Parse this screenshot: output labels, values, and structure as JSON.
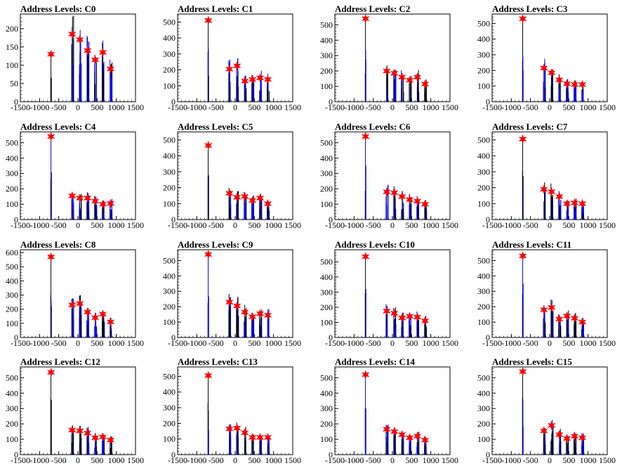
{
  "chart_data": [
    {
      "type": "bar",
      "title": "Address Levels: C0",
      "xlim": [
        -1500,
        1500
      ],
      "ylim": [
        0,
        240
      ],
      "yticks": [
        0,
        50,
        100,
        150,
        200
      ],
      "xticks": [
        -1500,
        -1000,
        -500,
        0,
        500,
        1000,
        1500
      ],
      "markers": {
        "x": [
          -700,
          -150,
          50,
          250,
          450,
          650,
          850
        ],
        "y": [
          130,
          185,
          170,
          140,
          115,
          135,
          90
        ]
      }
    },
    {
      "type": "bar",
      "title": "Address Levels: C1",
      "xlim": [
        -1500,
        1500
      ],
      "ylim": [
        0,
        550
      ],
      "yticks": [
        0,
        100,
        200,
        300,
        400,
        500
      ],
      "xticks": [
        -1500,
        -1000,
        -500,
        0,
        500,
        1000,
        1500
      ],
      "markers": {
        "x": [
          -700,
          -150,
          50,
          250,
          450,
          650,
          850
        ],
        "y": [
          510,
          205,
          225,
          130,
          140,
          150,
          140
        ]
      }
    },
    {
      "type": "bar",
      "title": "Address Levels: C2",
      "xlim": [
        -1500,
        1500
      ],
      "ylim": [
        0,
        570
      ],
      "yticks": [
        0,
        100,
        200,
        300,
        400,
        500
      ],
      "xticks": [
        -1500,
        -1000,
        -500,
        0,
        500,
        1000,
        1500
      ],
      "markers": {
        "x": [
          -700,
          -150,
          50,
          250,
          450,
          650,
          850
        ],
        "y": [
          540,
          200,
          185,
          160,
          140,
          160,
          115
        ]
      }
    },
    {
      "type": "bar",
      "title": "Address Levels: C3",
      "xlim": [
        -1500,
        1500
      ],
      "ylim": [
        0,
        560
      ],
      "yticks": [
        0,
        100,
        200,
        300,
        400,
        500
      ],
      "xticks": [
        -1500,
        -1000,
        -500,
        0,
        500,
        1000,
        1500
      ],
      "markers": {
        "x": [
          -700,
          -150,
          50,
          250,
          450,
          650,
          850
        ],
        "y": [
          530,
          215,
          185,
          140,
          115,
          110,
          110
        ]
      }
    },
    {
      "type": "bar",
      "title": "Address Levels: C4",
      "xlim": [
        -1500,
        1500
      ],
      "ylim": [
        0,
        570
      ],
      "yticks": [
        0,
        100,
        200,
        300,
        400,
        500
      ],
      "xticks": [
        -1500,
        -1000,
        -500,
        0,
        500,
        1000,
        1500
      ],
      "markers": {
        "x": [
          -700,
          -150,
          50,
          250,
          450,
          650,
          850
        ],
        "y": [
          540,
          155,
          140,
          140,
          120,
          100,
          105
        ]
      }
    },
    {
      "type": "bar",
      "title": "Address Levels: C5",
      "xlim": [
        -1500,
        1500
      ],
      "ylim": [
        0,
        550
      ],
      "yticks": [
        0,
        100,
        200,
        300,
        400,
        500
      ],
      "xticks": [
        -1500,
        -1000,
        -500,
        0,
        500,
        1000,
        1500
      ],
      "markers": {
        "x": [
          -700,
          -150,
          50,
          250,
          450,
          650,
          850
        ],
        "y": [
          465,
          165,
          140,
          145,
          120,
          135,
          100
        ]
      }
    },
    {
      "type": "bar",
      "title": "Address Levels: C6",
      "xlim": [
        -1500,
        1500
      ],
      "ylim": [
        0,
        570
      ],
      "yticks": [
        0,
        100,
        200,
        300,
        400,
        500
      ],
      "xticks": [
        -1500,
        -1000,
        -500,
        0,
        500,
        1000,
        1500
      ],
      "markers": {
        "x": [
          -700,
          -150,
          50,
          250,
          450,
          650,
          850
        ],
        "y": [
          540,
          180,
          175,
          150,
          130,
          120,
          100
        ]
      }
    },
    {
      "type": "bar",
      "title": "Address Levels: C7",
      "xlim": [
        -1500,
        1500
      ],
      "ylim": [
        0,
        550
      ],
      "yticks": [
        0,
        100,
        200,
        300,
        400,
        500
      ],
      "xticks": [
        -1500,
        -1000,
        -500,
        0,
        500,
        1000,
        1500
      ],
      "markers": {
        "x": [
          -700,
          -150,
          50,
          250,
          450,
          650,
          850
        ],
        "y": [
          505,
          190,
          175,
          145,
          100,
          105,
          100
        ]
      }
    },
    {
      "type": "bar",
      "title": "Address Levels: C8",
      "xlim": [
        -1500,
        1500
      ],
      "ylim": [
        0,
        620
      ],
      "yticks": [
        0,
        100,
        200,
        300,
        400,
        500,
        600
      ],
      "xticks": [
        -1500,
        -1000,
        -500,
        0,
        500,
        1000,
        1500
      ],
      "markers": {
        "x": [
          -700,
          -150,
          50,
          250,
          450,
          650,
          850
        ],
        "y": [
          570,
          230,
          240,
          180,
          140,
          165,
          110
        ]
      }
    },
    {
      "type": "bar",
      "title": "Address Levels: C9",
      "xlim": [
        -1500,
        1500
      ],
      "ylim": [
        0,
        570
      ],
      "yticks": [
        0,
        100,
        200,
        300,
        400,
        500
      ],
      "xticks": [
        -1500,
        -1000,
        -500,
        0,
        500,
        1000,
        1500
      ],
      "markers": {
        "x": [
          -700,
          -150,
          50,
          250,
          450,
          650,
          850
        ],
        "y": [
          540,
          230,
          205,
          165,
          135,
          155,
          145
        ]
      }
    },
    {
      "type": "bar",
      "title": "Address Levels: C10",
      "xlim": [
        -1500,
        1500
      ],
      "ylim": [
        0,
        580
      ],
      "yticks": [
        0,
        100,
        200,
        300,
        400,
        500
      ],
      "xticks": [
        -1500,
        -1000,
        -500,
        0,
        500,
        1000,
        1500
      ],
      "markers": {
        "x": [
          -700,
          -150,
          50,
          250,
          450,
          650,
          850
        ],
        "y": [
          535,
          175,
          160,
          130,
          140,
          135,
          110
        ]
      }
    },
    {
      "type": "bar",
      "title": "Address Levels: C11",
      "xlim": [
        -1500,
        1500
      ],
      "ylim": [
        0,
        570
      ],
      "yticks": [
        0,
        100,
        200,
        300,
        400,
        500
      ],
      "xticks": [
        -1500,
        -1000,
        -500,
        0,
        500,
        1000,
        1500
      ],
      "markers": {
        "x": [
          -700,
          -150,
          50,
          250,
          450,
          650,
          850
        ],
        "y": [
          530,
          180,
          195,
          120,
          140,
          125,
          100
        ]
      }
    },
    {
      "type": "bar",
      "title": "Address Levels: C12",
      "xlim": [
        -1500,
        1500
      ],
      "ylim": [
        0,
        570
      ],
      "yticks": [
        0,
        100,
        200,
        300,
        400,
        500
      ],
      "xticks": [
        -1500,
        -1000,
        -500,
        0,
        500,
        1000,
        1500
      ],
      "markers": {
        "x": [
          -700,
          -150,
          50,
          250,
          450,
          650,
          850
        ],
        "y": [
          535,
          160,
          155,
          140,
          110,
          115,
          95
        ]
      }
    },
    {
      "type": "bar",
      "title": "Address Levels: C13",
      "xlim": [
        -1500,
        1500
      ],
      "ylim": [
        0,
        560
      ],
      "yticks": [
        0,
        100,
        200,
        300,
        400,
        500
      ],
      "xticks": [
        -1500,
        -1000,
        -500,
        0,
        500,
        1000,
        1500
      ],
      "markers": {
        "x": [
          -700,
          -150,
          50,
          250,
          450,
          650,
          850
        ],
        "y": [
          505,
          165,
          170,
          140,
          110,
          110,
          110
        ]
      }
    },
    {
      "type": "bar",
      "title": "Address Levels: C14",
      "xlim": [
        -1500,
        1500
      ],
      "ylim": [
        0,
        570
      ],
      "yticks": [
        0,
        100,
        200,
        300,
        400,
        500
      ],
      "xticks": [
        -1500,
        -1000,
        -500,
        0,
        500,
        1000,
        1500
      ],
      "markers": {
        "x": [
          -700,
          -150,
          50,
          250,
          450,
          650,
          850
        ],
        "y": [
          520,
          165,
          150,
          130,
          110,
          120,
          95
        ]
      }
    },
    {
      "type": "bar",
      "title": "Address Levels: C15",
      "xlim": [
        -1500,
        1500
      ],
      "ylim": [
        0,
        570
      ],
      "yticks": [
        0,
        100,
        200,
        300,
        400,
        500
      ],
      "xticks": [
        -1500,
        -1000,
        -500,
        0,
        500,
        1000,
        1500
      ],
      "markers": {
        "x": [
          -700,
          -150,
          50,
          250,
          450,
          650,
          850
        ],
        "y": [
          540,
          155,
          190,
          130,
          105,
          120,
          110
        ]
      }
    }
  ],
  "colors": {
    "bar_primary": "#0000ff",
    "bar_secondary": "#000000",
    "marker": "#ff0000",
    "axis": "#000000"
  }
}
